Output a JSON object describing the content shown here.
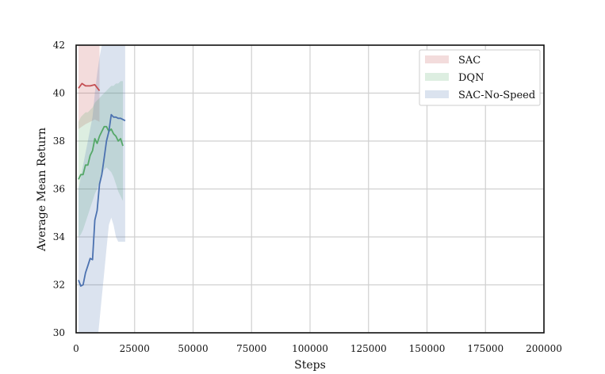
{
  "chart_data": {
    "type": "line",
    "title": "",
    "xlabel": "Steps",
    "ylabel": "Average Mean Return",
    "xlim": [
      0,
      200000
    ],
    "ylim": [
      30,
      42
    ],
    "x_ticks": [
      0,
      25000,
      50000,
      75000,
      100000,
      125000,
      150000,
      175000,
      200000
    ],
    "y_ticks": [
      30,
      32,
      34,
      36,
      38,
      40,
      42
    ],
    "x_tick_labels": [
      "0",
      "25000",
      "50000",
      "75000",
      "100000",
      "125000",
      "150000",
      "175000",
      "200000"
    ],
    "y_tick_labels": [
      "30",
      "32",
      "34",
      "36",
      "38",
      "40",
      "42"
    ],
    "grid": true,
    "legend_position": "top-right",
    "legend": [
      "SAC",
      "DQN",
      "SAC-No-Speed"
    ],
    "series": [
      {
        "name": "SAC",
        "color": "#c44e52",
        "x": [
          1000,
          2500,
          4000,
          6000,
          8000,
          10000
        ],
        "mean": [
          40.2,
          40.4,
          40.3,
          40.3,
          40.35,
          40.1
        ],
        "upper": [
          42.5,
          42.5,
          42.5,
          42.5,
          42.5,
          42.5
        ],
        "lower": [
          38.5,
          38.6,
          38.7,
          38.8,
          38.9,
          38.8
        ]
      },
      {
        "name": "DQN",
        "color": "#55a868",
        "x": [
          1000,
          2000,
          3000,
          4000,
          5000,
          6000,
          7000,
          8000,
          9000,
          10000,
          11000,
          12000,
          13000,
          14000,
          15000,
          16000,
          17000,
          18000,
          19000,
          20000
        ],
        "mean": [
          36.4,
          36.6,
          36.6,
          37.0,
          37.0,
          37.4,
          37.6,
          38.1,
          37.9,
          38.2,
          38.4,
          38.6,
          38.6,
          38.4,
          38.5,
          38.3,
          38.2,
          38.0,
          38.1,
          37.8
        ],
        "upper": [
          38.8,
          39.0,
          39.1,
          39.2,
          39.2,
          39.3,
          39.4,
          39.6,
          39.7,
          39.8,
          39.9,
          40.0,
          40.1,
          40.2,
          40.3,
          40.3,
          40.4,
          40.4,
          40.5,
          40.5
        ],
        "lower": [
          34.0,
          34.1,
          34.3,
          34.6,
          34.9,
          35.2,
          35.5,
          35.8,
          36.0,
          36.3,
          36.6,
          36.8,
          36.9,
          36.8,
          36.7,
          36.5,
          36.2,
          35.9,
          35.7,
          35.5
        ]
      },
      {
        "name": "SAC-No-Speed",
        "color": "#4c72b0",
        "x": [
          1000,
          2000,
          3000,
          4000,
          5000,
          6000,
          7000,
          8000,
          9000,
          10000,
          11000,
          12000,
          13000,
          14000,
          15000,
          16000,
          17000,
          18000,
          19000,
          20000,
          21000
        ],
        "mean": [
          32.2,
          31.95,
          32.0,
          32.5,
          32.8,
          33.1,
          33.05,
          34.7,
          35.1,
          36.2,
          36.6,
          37.3,
          38.0,
          38.4,
          39.1,
          39.0,
          39.0,
          38.95,
          38.95,
          38.9,
          38.85
        ],
        "upper": [
          36.0,
          36.5,
          37.0,
          37.5,
          38.0,
          38.5,
          39.0,
          40.0,
          40.8,
          41.5,
          42.0,
          42.5,
          42.5,
          42.5,
          42.5,
          42.5,
          42.5,
          42.5,
          42.5,
          42.5,
          42.5
        ],
        "lower": [
          28.0,
          28.0,
          28.0,
          28.0,
          28.0,
          28.0,
          28.0,
          28.5,
          29.5,
          30.5,
          31.5,
          32.5,
          33.5,
          34.5,
          34.8,
          34.5,
          34.0,
          33.8,
          33.8,
          33.8,
          33.8
        ]
      }
    ]
  }
}
